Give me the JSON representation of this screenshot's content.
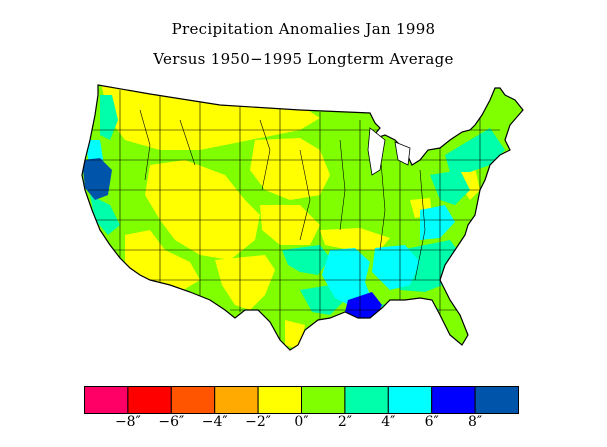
{
  "figure": {
    "title_line1": "Precipitation Anomalies Jan 1998",
    "title_line2": "Versus 1950−1995 Longterm Average"
  },
  "legend": {
    "colors": [
      "#ff0066",
      "#ff0000",
      "#ff5500",
      "#ffaa00",
      "#ffff00",
      "#80ff00",
      "#00ffaa",
      "#00ffff",
      "#0000ff",
      "#0055aa"
    ],
    "ticks": [
      "−8″",
      "−6″",
      "−4″",
      "−2″",
      "0″",
      "2″",
      "4″",
      "6″",
      "8″"
    ]
  }
}
